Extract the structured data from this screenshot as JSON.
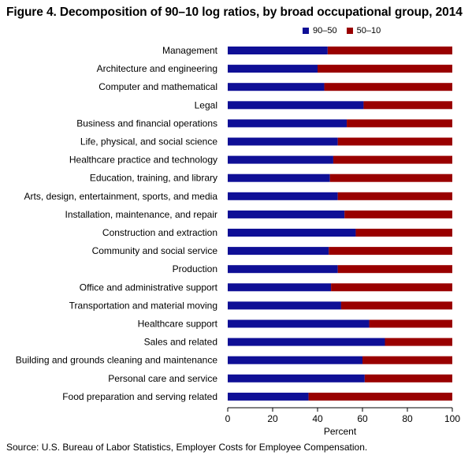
{
  "title": "Figure 4. Decomposition of 90–10 log ratios, by broad occupational group, 2014",
  "source": "Source: U.S. Bureau of Labor Statistics, Employer Costs for Employee Compensation.",
  "colors": {
    "series1": "#0f0f96",
    "series2": "#990000"
  },
  "chart_data": {
    "type": "bar",
    "orientation": "horizontal",
    "stacked": true,
    "xlabel": "Percent",
    "xlim": [
      0,
      100
    ],
    "xticks": [
      0,
      20,
      40,
      60,
      80,
      100
    ],
    "grid": false,
    "legend_position": "top-right",
    "categories": [
      "Management",
      "Architecture and engineering",
      "Computer and mathematical",
      "Legal",
      "Business and financial operations",
      "Life, physical, and social science",
      "Healthcare practice and technology",
      "Education, training, and library",
      "Arts, design, entertainment, sports, and media",
      "Installation, maintenance, and repair",
      "Construction and extraction",
      "Community and social service",
      "Production",
      "Office and administrative support",
      "Transportation and material moving",
      "Healthcare support",
      "Sales and related",
      "Building and grounds cleaning and maintenance",
      "Personal care and service",
      "Food preparation and serving related"
    ],
    "series": [
      {
        "name": "90–50",
        "color": "#0f0f96",
        "values": [
          44.5,
          40,
          43,
          60.5,
          53,
          49,
          47,
          45.5,
          49,
          52,
          57,
          45,
          49,
          46,
          50.5,
          63,
          70,
          60,
          61,
          36
        ]
      },
      {
        "name": "50–10",
        "color": "#990000",
        "values": [
          55.5,
          60,
          57,
          39.5,
          47,
          51,
          53,
          54.5,
          51,
          48,
          43,
          55,
          51,
          54,
          49.5,
          37,
          30,
          40,
          39,
          64
        ]
      }
    ]
  }
}
